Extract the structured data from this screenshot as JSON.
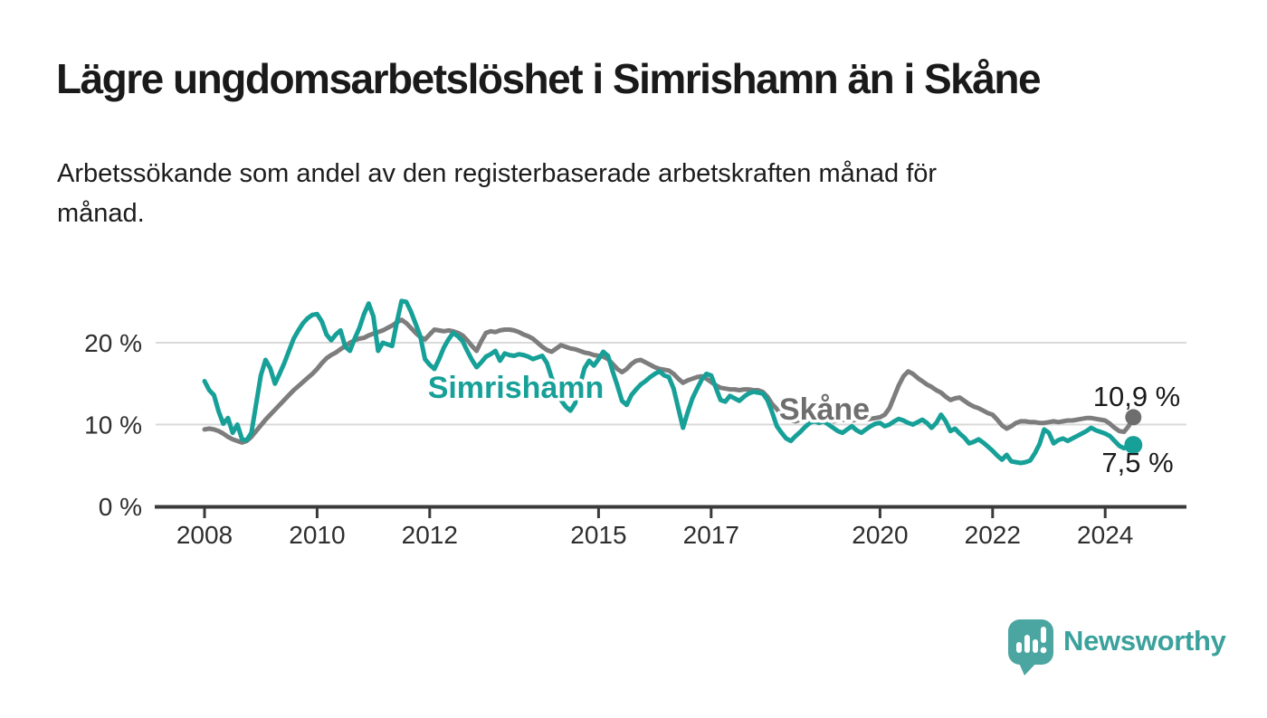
{
  "header": {
    "title": "Lägre ungdomsarbetslöshet i Simrishamn än i Skåne",
    "subtitle_lines": [
      "Arbetssökande som andel av den registerbaserade arbetskraften månad för",
      "månad."
    ]
  },
  "branding": {
    "logo_text": "Newsworthy",
    "logo_icon": "bar-chart-speech-bubble-icon",
    "logo_color": "#4ba5a1"
  },
  "colors": {
    "simrishamn": "#16a098",
    "skane_line": "#7d7d7d",
    "skane_label": "#6e6e6e",
    "axis": "#3a3a3a",
    "grid": "#d9d9d9",
    "text": "#1a1a1a"
  },
  "chart_data": {
    "type": "line",
    "title": "Lägre ungdomsarbetslöshet i Simrishamn än i Skåne",
    "subtitle": "Arbetssökande som andel av den registerbaserade arbetskraften månad för månad.",
    "unit": "%",
    "x_start_year": 2008,
    "x_step_months": 1,
    "x_end_label_period": "mitten av 2024",
    "x_ticks": [
      2008,
      2010,
      2012,
      2015,
      2017,
      2020,
      2022,
      2024
    ],
    "x_tick_labels": [
      "2008",
      "2010",
      "2012",
      "2015",
      "2017",
      "2020",
      "2022",
      "2024"
    ],
    "y_ticks": [
      {
        "value": 20,
        "label": "20 %"
      },
      {
        "value": 10,
        "label": "10 %"
      },
      {
        "value": 0,
        "label": "0 %"
      }
    ],
    "ylim": [
      0,
      27
    ],
    "grid": "horizontal",
    "legend_position": "inline-labels",
    "series": [
      {
        "name": "Skåne",
        "color": "#7d7d7d",
        "dot_color": "#6e6e6e",
        "end_label": "10,9 %",
        "end_value": 10.9,
        "values": [
          9.4,
          9.5,
          9.4,
          9.2,
          8.9,
          8.5,
          8.2,
          8.0,
          7.8,
          8.0,
          8.5,
          9.2,
          9.9,
          10.6,
          11.2,
          11.8,
          12.4,
          13.0,
          13.6,
          14.2,
          14.7,
          15.2,
          15.7,
          16.2,
          16.8,
          17.5,
          18.1,
          18.5,
          18.8,
          19.2,
          19.6,
          20.0,
          20.3,
          20.5,
          20.6,
          20.9,
          21.1,
          21.3,
          21.5,
          21.8,
          22.1,
          22.5,
          22.8,
          22.4,
          21.8,
          21.2,
          20.7,
          20.4,
          21.0,
          21.6,
          21.5,
          21.4,
          21.5,
          21.4,
          21.2,
          20.9,
          20.3,
          19.6,
          19.0,
          20.2,
          21.2,
          21.4,
          21.3,
          21.5,
          21.6,
          21.6,
          21.5,
          21.3,
          21.0,
          20.8,
          20.5,
          20.0,
          19.5,
          19.1,
          18.9,
          19.3,
          19.7,
          19.5,
          19.3,
          19.2,
          19.0,
          18.8,
          18.7,
          18.5,
          18.4,
          18.3,
          18.0,
          17.4,
          16.8,
          16.4,
          16.8,
          17.4,
          17.8,
          17.9,
          17.6,
          17.3,
          17.0,
          16.8,
          16.7,
          16.6,
          16.2,
          15.6,
          15.1,
          15.4,
          15.6,
          15.8,
          15.9,
          15.6,
          15.2,
          14.8,
          14.5,
          14.4,
          14.3,
          14.3,
          14.2,
          14.3,
          14.3,
          14.2,
          14.2,
          14.0,
          13.4,
          12.5,
          11.9,
          11.2,
          10.8,
          10.5,
          10.4,
          10.6,
          10.8,
          11.0,
          10.9,
          10.8,
          10.7,
          10.5,
          10.4,
          10.5,
          10.6,
          10.5,
          10.5,
          10.6,
          10.5,
          10.6,
          10.7,
          10.8,
          10.9,
          11.2,
          12.0,
          13.4,
          14.8,
          15.9,
          16.5,
          16.2,
          15.7,
          15.3,
          14.9,
          14.6,
          14.2,
          13.9,
          13.4,
          13.0,
          13.2,
          13.3,
          12.9,
          12.5,
          12.2,
          12.0,
          11.7,
          11.4,
          11.2,
          10.6,
          9.9,
          9.5,
          9.8,
          10.2,
          10.4,
          10.4,
          10.3,
          10.3,
          10.2,
          10.2,
          10.3,
          10.4,
          10.3,
          10.4,
          10.5,
          10.5,
          10.6,
          10.7,
          10.8,
          10.8,
          10.7,
          10.6,
          10.5,
          10.1,
          9.6,
          9.2,
          9.1,
          9.8,
          10.9
        ]
      },
      {
        "name": "Simrishamn",
        "color": "#16a098",
        "dot_color": "#16a098",
        "end_label": "7,5 %",
        "end_value": 7.5,
        "values": [
          15.3,
          14.2,
          13.6,
          11.6,
          10.1,
          10.8,
          9.0,
          10.0,
          8.2,
          8.1,
          9.0,
          12.5,
          16.0,
          17.9,
          16.9,
          15.0,
          16.2,
          17.5,
          19.0,
          20.5,
          21.5,
          22.4,
          23.0,
          23.4,
          23.5,
          22.6,
          21.0,
          20.3,
          21.0,
          21.5,
          19.5,
          19.0,
          20.5,
          21.8,
          23.5,
          24.8,
          23.2,
          19.0,
          20.0,
          19.8,
          19.6,
          22.5,
          25.1,
          25.0,
          23.8,
          22.3,
          20.8,
          18.0,
          17.3,
          16.8,
          18.0,
          19.4,
          20.4,
          21.2,
          20.8,
          20.2,
          19.0,
          17.9,
          17.0,
          17.6,
          18.3,
          18.6,
          19.0,
          17.8,
          18.7,
          18.5,
          18.4,
          18.6,
          18.5,
          18.3,
          18.0,
          18.2,
          18.4,
          17.5,
          15.7,
          14.5,
          13.0,
          12.2,
          11.7,
          12.6,
          14.8,
          16.9,
          17.8,
          17.2,
          18.0,
          18.9,
          18.4,
          16.5,
          14.8,
          12.9,
          12.4,
          13.6,
          14.3,
          14.9,
          15.3,
          15.8,
          16.2,
          16.5,
          16.0,
          15.8,
          14.4,
          12.0,
          9.6,
          11.5,
          13.2,
          14.4,
          15.5,
          16.2,
          16.0,
          14.5,
          13.0,
          12.8,
          13.5,
          13.2,
          12.9,
          13.4,
          13.8,
          14.0,
          13.9,
          13.8,
          13.0,
          11.5,
          9.8,
          9.0,
          8.3,
          8.0,
          8.6,
          9.1,
          9.7,
          10.2,
          10.4,
          10.2,
          10.4,
          10.0,
          9.6,
          9.2,
          9.0,
          9.4,
          9.8,
          9.3,
          9.0,
          9.4,
          9.8,
          10.1,
          10.2,
          9.8,
          10.0,
          10.4,
          10.7,
          10.5,
          10.2,
          10.0,
          10.3,
          10.6,
          10.2,
          9.6,
          10.2,
          11.2,
          10.4,
          9.2,
          9.5,
          8.9,
          8.4,
          7.7,
          7.9,
          8.2,
          7.8,
          7.3,
          6.8,
          6.2,
          5.7,
          6.3,
          5.5,
          5.4,
          5.3,
          5.4,
          5.6,
          6.5,
          7.6,
          9.4,
          9.0,
          7.7,
          8.1,
          8.3,
          8.0,
          8.3,
          8.6,
          8.9,
          9.2,
          9.6,
          9.3,
          9.1,
          8.9,
          8.6,
          8.0,
          7.4,
          7.1,
          7.3,
          7.5
        ]
      }
    ]
  }
}
